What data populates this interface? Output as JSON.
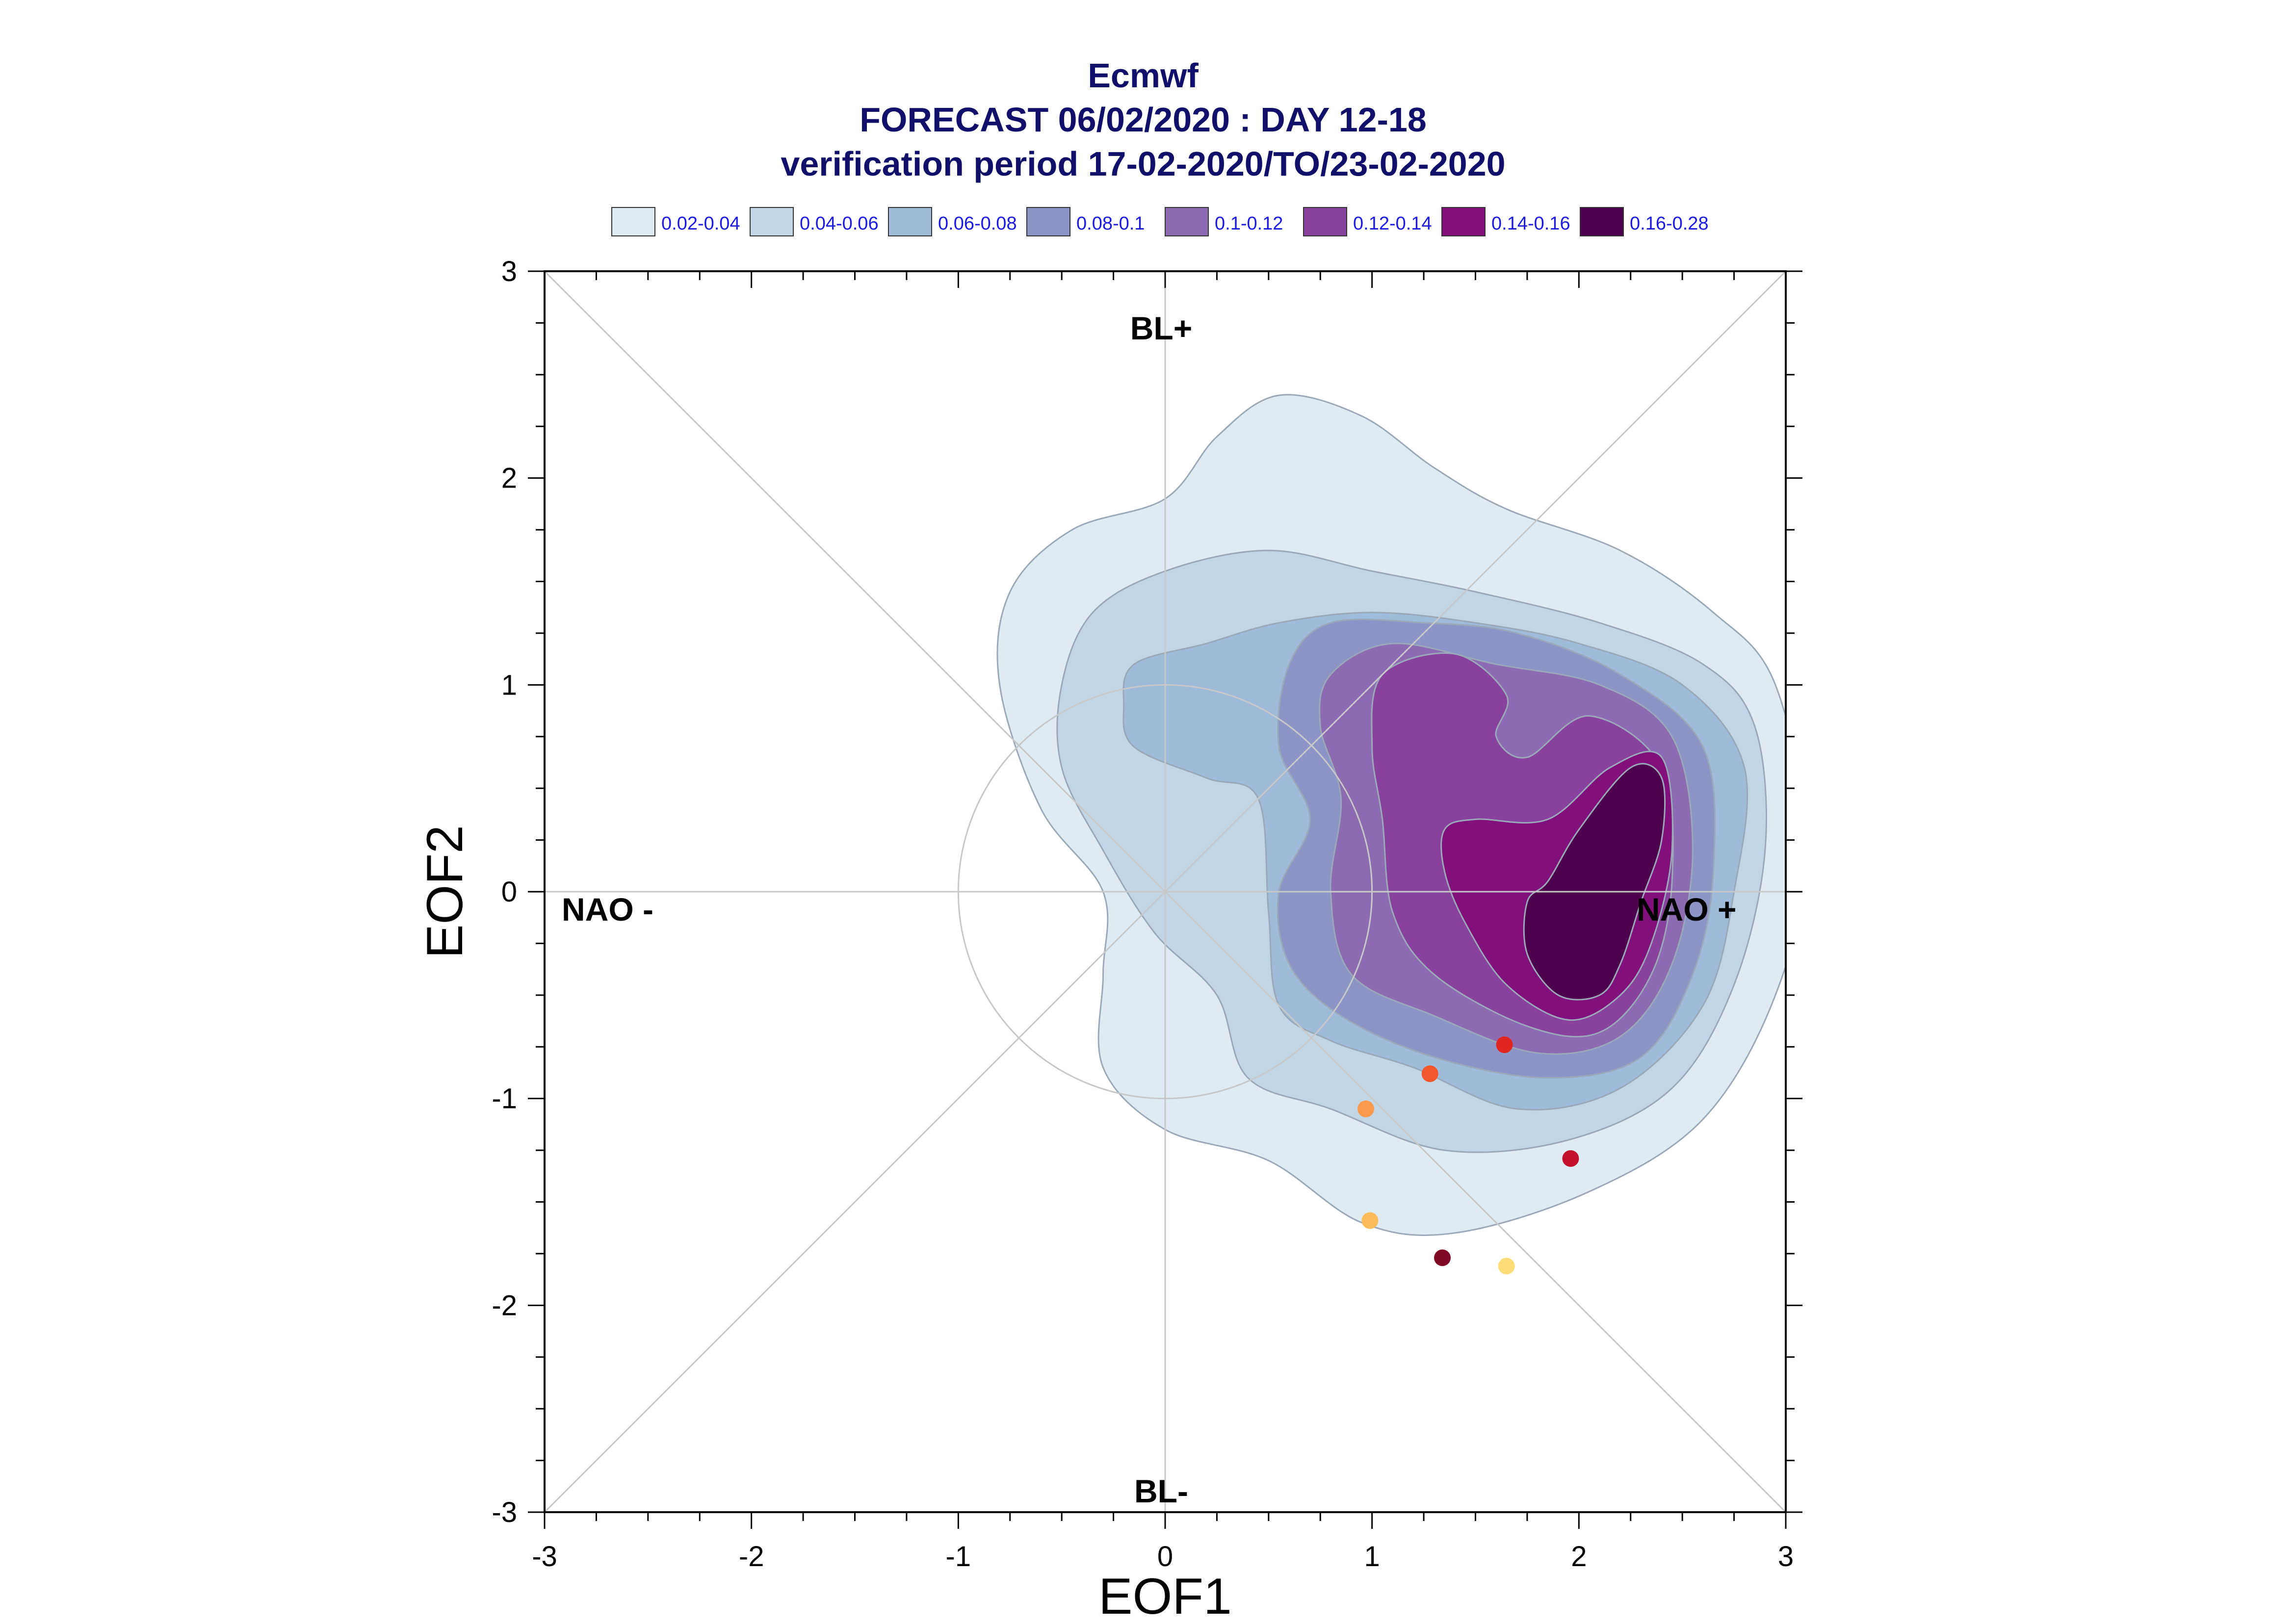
{
  "chart_data": {
    "type": "scatter",
    "title_lines": [
      "Ecmwf",
      "FORECAST 06/02/2020 : DAY 12-18",
      "verification period 17-02-2020/TO/23-02-2020"
    ],
    "xlabel": "EOF1",
    "ylabel": "EOF2",
    "xlim": [
      -3,
      3
    ],
    "ylim": [
      -3,
      3
    ],
    "xticks": [
      "-3",
      "-2",
      "-1",
      "0",
      "1",
      "2",
      "3"
    ],
    "yticks": [
      "3",
      "2",
      "1",
      "0",
      "-1",
      "-2",
      "-3"
    ],
    "legend": [
      {
        "label": "0.02-0.04",
        "color": "#deebf3"
      },
      {
        "label": "0.04-0.06",
        "color": "#c1d5e4"
      },
      {
        "label": "0.06-0.08",
        "color": "#9ebcd9"
      },
      {
        "label": "0.08-0.1",
        "color": "#8c96c6"
      },
      {
        "label": "0.1-0.12",
        "color": "#8c6bb1"
      },
      {
        "label": "0.12-0.14",
        "color": "#88419d"
      },
      {
        "label": "0.14-0.16",
        "color": "#810f7c"
      },
      {
        "label": "0.16-0.28",
        "color": "#4d004b"
      }
    ],
    "region_labels": {
      "top": "BL+",
      "bottom": "BL-",
      "left": "NAO -",
      "right": "NAO +"
    },
    "density_levels": [
      [
        [
          0.55,
          2.4
        ],
        [
          0.95,
          2.3
        ],
        [
          1.3,
          2.05
        ],
        [
          1.65,
          1.85
        ],
        [
          2.2,
          1.65
        ],
        [
          2.65,
          1.35
        ],
        [
          2.95,
          1.0
        ],
        [
          3.1,
          0.2
        ],
        [
          2.95,
          -0.5
        ],
        [
          2.6,
          -1.1
        ],
        [
          2.05,
          -1.45
        ],
        [
          1.4,
          -1.65
        ],
        [
          0.95,
          -1.6
        ],
        [
          0.5,
          -1.3
        ],
        [
          0.0,
          -1.15
        ],
        [
          -0.3,
          -0.85
        ],
        [
          -0.3,
          -0.4
        ],
        [
          -0.3,
          0.0
        ],
        [
          -0.6,
          0.4
        ],
        [
          -0.8,
          1.0
        ],
        [
          -0.75,
          1.45
        ],
        [
          -0.45,
          1.75
        ],
        [
          0.0,
          1.9
        ],
        [
          0.25,
          2.2
        ]
      ],
      [
        [
          0.0,
          1.55
        ],
        [
          0.5,
          1.65
        ],
        [
          1.0,
          1.55
        ],
        [
          1.5,
          1.45
        ],
        [
          2.1,
          1.3
        ],
        [
          2.6,
          1.1
        ],
        [
          2.85,
          0.8
        ],
        [
          2.9,
          0.2
        ],
        [
          2.75,
          -0.45
        ],
        [
          2.45,
          -0.95
        ],
        [
          1.95,
          -1.2
        ],
        [
          1.35,
          -1.25
        ],
        [
          0.8,
          -1.05
        ],
        [
          0.4,
          -0.9
        ],
        [
          0.25,
          -0.5
        ],
        [
          -0.05,
          -0.2
        ],
        [
          -0.3,
          0.2
        ],
        [
          -0.5,
          0.6
        ],
        [
          -0.5,
          1.0
        ],
        [
          -0.35,
          1.35
        ]
      ],
      [
        [
          -0.15,
          1.1
        ],
        [
          0.2,
          1.2
        ],
        [
          0.55,
          1.3
        ],
        [
          1.0,
          1.35
        ],
        [
          1.5,
          1.3
        ],
        [
          2.0,
          1.2
        ],
        [
          2.5,
          1.0
        ],
        [
          2.8,
          0.6
        ],
        [
          2.75,
          0.0
        ],
        [
          2.6,
          -0.55
        ],
        [
          2.2,
          -0.95
        ],
        [
          1.7,
          -1.05
        ],
        [
          1.2,
          -0.85
        ],
        [
          0.8,
          -0.72
        ],
        [
          0.55,
          -0.55
        ],
        [
          0.5,
          -0.1
        ],
        [
          0.45,
          0.45
        ],
        [
          0.2,
          0.55
        ],
        [
          -0.15,
          0.7
        ],
        [
          -0.2,
          0.9
        ]
      ],
      [
        [
          0.6,
          1.1
        ],
        [
          0.8,
          1.3
        ],
        [
          1.25,
          1.3
        ],
        [
          1.7,
          1.25
        ],
        [
          2.2,
          1.05
        ],
        [
          2.6,
          0.7
        ],
        [
          2.65,
          0.1
        ],
        [
          2.55,
          -0.4
        ],
        [
          2.3,
          -0.8
        ],
        [
          1.85,
          -0.9
        ],
        [
          1.3,
          -0.8
        ],
        [
          0.85,
          -0.6
        ],
        [
          0.6,
          -0.35
        ],
        [
          0.55,
          0.0
        ],
        [
          0.7,
          0.35
        ],
        [
          0.55,
          0.7
        ]
      ],
      [
        [
          0.8,
          1.05
        ],
        [
          1.1,
          1.2
        ],
        [
          1.6,
          1.1
        ],
        [
          2.1,
          1.0
        ],
        [
          2.45,
          0.75
        ],
        [
          2.55,
          0.2
        ],
        [
          2.45,
          -0.35
        ],
        [
          2.2,
          -0.7
        ],
        [
          1.8,
          -0.78
        ],
        [
          1.3,
          -0.6
        ],
        [
          0.9,
          -0.4
        ],
        [
          0.8,
          0.0
        ],
        [
          0.85,
          0.45
        ],
        [
          0.75,
          0.8
        ]
      ],
      [
        [
          1.05,
          1.05
        ],
        [
          1.4,
          1.15
        ],
        [
          1.65,
          0.95
        ],
        [
          1.6,
          0.75
        ],
        [
          1.75,
          0.65
        ],
        [
          2.05,
          0.85
        ],
        [
          2.4,
          0.6
        ],
        [
          2.45,
          0.05
        ],
        [
          2.35,
          -0.4
        ],
        [
          2.1,
          -0.68
        ],
        [
          1.75,
          -0.65
        ],
        [
          1.3,
          -0.4
        ],
        [
          1.1,
          -0.1
        ],
        [
          1.05,
          0.35
        ],
        [
          1.0,
          0.7
        ]
      ],
      [
        [
          1.5,
          0.35
        ],
        [
          1.85,
          0.35
        ],
        [
          2.15,
          0.6
        ],
        [
          2.4,
          0.65
        ],
        [
          2.45,
          0.2
        ],
        [
          2.35,
          -0.25
        ],
        [
          2.2,
          -0.5
        ],
        [
          1.95,
          -0.62
        ],
        [
          1.65,
          -0.45
        ],
        [
          1.45,
          -0.15
        ],
        [
          1.35,
          0.1
        ],
        [
          1.35,
          0.3
        ]
      ],
      [
        [
          1.85,
          0.05
        ],
        [
          2.0,
          0.3
        ],
        [
          2.25,
          0.6
        ],
        [
          2.4,
          0.55
        ],
        [
          2.4,
          0.25
        ],
        [
          2.3,
          -0.05
        ],
        [
          2.2,
          -0.35
        ],
        [
          2.1,
          -0.5
        ],
        [
          1.9,
          -0.5
        ],
        [
          1.75,
          -0.3
        ],
        [
          1.75,
          -0.05
        ]
      ]
    ],
    "points": [
      {
        "x": 1.64,
        "y": -0.74,
        "color": "#e0261f"
      },
      {
        "x": 1.28,
        "y": -0.88,
        "color": "#f2572e"
      },
      {
        "x": 0.97,
        "y": -1.05,
        "color": "#fb9a4a"
      },
      {
        "x": 1.96,
        "y": -1.29,
        "color": "#c3102c"
      },
      {
        "x": 0.99,
        "y": -1.59,
        "color": "#fdbb5a"
      },
      {
        "x": 1.34,
        "y": -1.77,
        "color": "#800a26"
      },
      {
        "x": 1.65,
        "y": -1.81,
        "color": "#fedc76"
      }
    ],
    "grid": false
  }
}
